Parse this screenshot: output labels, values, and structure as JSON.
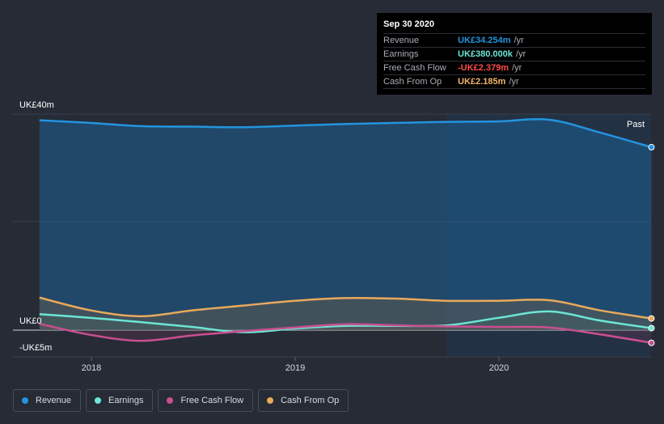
{
  "tooltip": {
    "date": "Sep 30 2020",
    "rows": [
      {
        "label": "Revenue",
        "value": "UK£34.254m",
        "unit": "/yr",
        "color": "#2394df"
      },
      {
        "label": "Earnings",
        "value": "UK£380.000k",
        "unit": "/yr",
        "color": "#6ce5d5"
      },
      {
        "label": "Free Cash Flow",
        "value": "-UK£2.379m",
        "unit": "/yr",
        "color": "#ff4a4a"
      },
      {
        "label": "Cash From Op",
        "value": "UK£2.185m",
        "unit": "/yr",
        "color": "#f2b56b"
      }
    ]
  },
  "past_label": "Past",
  "legend": [
    {
      "label": "Revenue",
      "color": "#2394df"
    },
    {
      "label": "Earnings",
      "color": "#6ce5d5"
    },
    {
      "label": "Free Cash Flow",
      "color": "#c94f90"
    },
    {
      "label": "Cash From Op",
      "color": "#e8a95b"
    }
  ],
  "chart_data": {
    "type": "area",
    "x_ticks": [
      "2018",
      "2019",
      "2020"
    ],
    "y_ticks": [
      "UK£40m",
      "UK£0",
      "-UK£5m"
    ],
    "ylim": [
      -5,
      40
    ],
    "series": [
      {
        "name": "Revenue",
        "color": "#2394df",
        "x": [
          "2017-09-30",
          "2017-12-31",
          "2018-03-31",
          "2018-06-30",
          "2018-09-30",
          "2018-12-31",
          "2019-03-31",
          "2019-06-30",
          "2019-09-30",
          "2019-12-31",
          "2020-03-31",
          "2020-06-30",
          "2020-09-30"
        ],
        "values": [
          39.3,
          38.8,
          38.2,
          38.1,
          38.0,
          38.3,
          38.6,
          38.8,
          39.0,
          39.1,
          39.4,
          37.0,
          34.254
        ]
      },
      {
        "name": "Earnings",
        "color": "#6ce5d5",
        "x": [
          "2017-09-30",
          "2017-12-31",
          "2018-03-31",
          "2018-06-30",
          "2018-09-30",
          "2018-12-31",
          "2019-03-31",
          "2019-06-30",
          "2019-09-30",
          "2019-12-31",
          "2020-03-31",
          "2020-06-30",
          "2020-09-30"
        ],
        "values": [
          3.0,
          2.3,
          1.5,
          0.6,
          -0.4,
          0.3,
          0.8,
          0.8,
          0.9,
          2.3,
          3.5,
          1.8,
          0.38
        ]
      },
      {
        "name": "Free Cash Flow",
        "color": "#c94f90",
        "x": [
          "2017-09-30",
          "2017-12-31",
          "2018-03-31",
          "2018-06-30",
          "2018-09-30",
          "2018-12-31",
          "2019-03-31",
          "2019-06-30",
          "2019-09-30",
          "2019-12-31",
          "2020-03-31",
          "2020-06-30",
          "2020-09-30"
        ],
        "values": [
          1.2,
          -0.9,
          -2.0,
          -1.0,
          -0.2,
          0.5,
          1.1,
          0.9,
          0.7,
          0.6,
          0.5,
          -0.8,
          -2.379
        ]
      },
      {
        "name": "Cash From Op",
        "color": "#e8a95b",
        "x": [
          "2017-09-30",
          "2017-12-31",
          "2018-03-31",
          "2018-06-30",
          "2018-09-30",
          "2018-12-31",
          "2019-03-31",
          "2019-06-30",
          "2019-09-30",
          "2019-12-31",
          "2020-03-31",
          "2020-06-30",
          "2020-09-30"
        ],
        "values": [
          6.1,
          3.7,
          2.6,
          3.7,
          4.6,
          5.5,
          6.0,
          5.9,
          5.5,
          5.5,
          5.6,
          3.7,
          2.185
        ]
      }
    ],
    "grid": true
  }
}
